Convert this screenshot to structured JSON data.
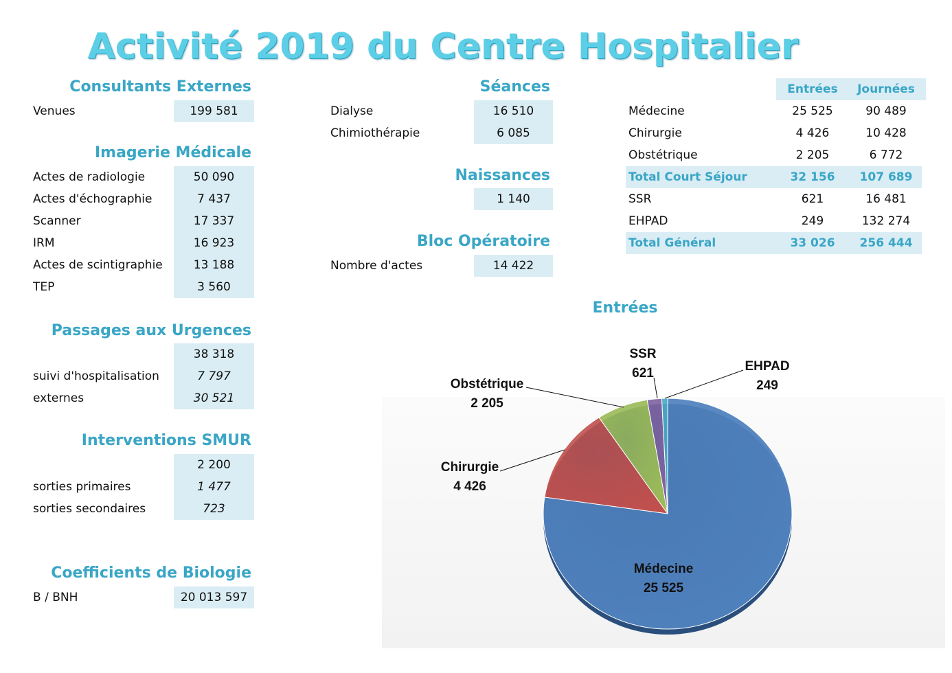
{
  "title": "Activité 2019 du Centre Hospitalier",
  "consultants": {
    "title": "Consultants Externes",
    "rows": [
      {
        "label": "Venues",
        "value": "199 581"
      }
    ]
  },
  "imagerie": {
    "title": "Imagerie Médicale",
    "rows": [
      {
        "label": "Actes de radiologie",
        "value": "50 090"
      },
      {
        "label": "Actes d'échographie",
        "value": "7 437"
      },
      {
        "label": "Scanner",
        "value": "17 337"
      },
      {
        "label": "IRM",
        "value": "16 923"
      },
      {
        "label": "Actes de scintigraphie",
        "value": "13 188"
      },
      {
        "label": "TEP",
        "value": "3 560"
      }
    ]
  },
  "urgences": {
    "title": "Passages aux Urgences",
    "total": "38 318",
    "rows": [
      {
        "label": "suivi d'hospitalisation",
        "value": "7 797"
      },
      {
        "label": "externes",
        "value": "30 521"
      }
    ]
  },
  "smur": {
    "title": "Interventions SMUR",
    "total": "2 200",
    "rows": [
      {
        "label": "sorties primaires",
        "value": "1 477"
      },
      {
        "label": "sorties secondaires",
        "value": "723"
      }
    ]
  },
  "biologie": {
    "title": "Coefficients de Biologie",
    "rows": [
      {
        "label": "B / BNH",
        "value": "20 013 597"
      }
    ]
  },
  "seances": {
    "title": "Séances",
    "rows": [
      {
        "label": "Dialyse",
        "value": "16 510"
      },
      {
        "label": "Chimiothérapie",
        "value": "6 085"
      }
    ]
  },
  "naissances": {
    "title": "Naissances",
    "value": "1 140"
  },
  "bloc": {
    "title": "Bloc Opératoire",
    "rows": [
      {
        "label": "Nombre d'actes",
        "value": "14 422"
      }
    ]
  },
  "sejour": {
    "headers": [
      "Entrées",
      "Journées"
    ],
    "rows": [
      {
        "label": "Médecine",
        "entrees": "25 525",
        "journees": "90 489",
        "total": false
      },
      {
        "label": "Chirurgie",
        "entrees": "4 426",
        "journees": "10 428",
        "total": false
      },
      {
        "label": "Obstétrique",
        "entrees": "2 205",
        "journees": "6 772",
        "total": false
      },
      {
        "label": "Total Court Séjour",
        "entrees": "32 156",
        "journees": "107 689",
        "total": true
      },
      {
        "label": "SSR",
        "entrees": "621",
        "journees": "16 481",
        "total": false
      },
      {
        "label": "EHPAD",
        "entrees": "249",
        "journees": "132 274",
        "total": false
      },
      {
        "label": "Total Général",
        "entrees": "33 026",
        "journees": "256 444",
        "total": true
      }
    ]
  },
  "chart_data": {
    "type": "pie",
    "title": "Entrées",
    "categories": [
      "Médecine",
      "Chirurgie",
      "Obstétrique",
      "SSR",
      "EHPAD"
    ],
    "values": [
      25525,
      4426,
      2205,
      621,
      249
    ],
    "value_labels": [
      "25 525",
      "4 426",
      "2 205",
      "621",
      "249"
    ],
    "colors": [
      "#4f81bd",
      "#c0504d",
      "#9bbb59",
      "#8064a2",
      "#4bacc6"
    ]
  }
}
